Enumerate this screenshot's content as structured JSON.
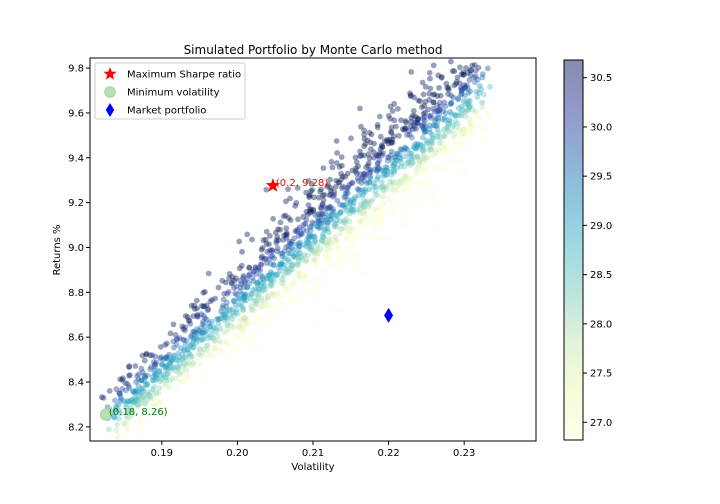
{
  "chart_data": {
    "type": "scatter",
    "title": "Simulated Portfolio by Monte Carlo method",
    "xlabel": "Volatility",
    "ylabel": "Returns %",
    "xlim": [
      0.1805,
      0.2395
    ],
    "ylim": [
      8.137,
      9.845
    ],
    "x_ticks": [
      0.19,
      0.2,
      0.21,
      0.22,
      0.23
    ],
    "x_tick_labels": [
      "0.19",
      "0.20",
      "0.21",
      "0.22",
      "0.23"
    ],
    "y_ticks": [
      8.2,
      8.4,
      8.6,
      8.8,
      9.0,
      9.2,
      9.4,
      9.6,
      9.8
    ],
    "y_tick_labels": [
      "8.2",
      "8.4",
      "8.6",
      "8.8",
      "9.0",
      "9.2",
      "9.4",
      "9.6",
      "9.8"
    ],
    "colorbar": {
      "range": [
        26.82,
        30.68
      ],
      "ticks": [
        27.0,
        27.5,
        28.0,
        28.5,
        29.0,
        29.5,
        30.0,
        30.5
      ],
      "tick_labels": [
        "27.0",
        "27.5",
        "28.0",
        "28.5",
        "29.0",
        "29.5",
        "30.0",
        "30.5"
      ],
      "colormap": "YlGnBu"
    },
    "scatter_cloud": {
      "description": "Monte Carlo simulated portfolios",
      "center_line": [
        [
          0.183,
          8.24
        ],
        [
          0.232,
          9.7
        ]
      ],
      "approx_count": 1600
    },
    "markers": [
      {
        "name": "Maximum Sharpe ratio",
        "x": 0.2047,
        "y": 9.276,
        "shape": "star",
        "color": "#ff0000",
        "annotation": "(0.2, 9.28)",
        "annotation_color": "#ff0000"
      },
      {
        "name": "Minimum volatility",
        "x": 0.1826,
        "y": 8.255,
        "shape": "circle",
        "color": "#b9dfb4",
        "annotation": "(0.18, 8.26)",
        "annotation_color": "#008000"
      },
      {
        "name": "Market portfolio",
        "x": 0.22,
        "y": 8.697,
        "shape": "diamond",
        "color": "#0000ff",
        "annotation": "",
        "annotation_color": ""
      }
    ],
    "legend": {
      "placement": "top-left",
      "entries": [
        "Maximum Sharpe ratio",
        "Minimum volatility",
        "Market portfolio"
      ]
    }
  }
}
